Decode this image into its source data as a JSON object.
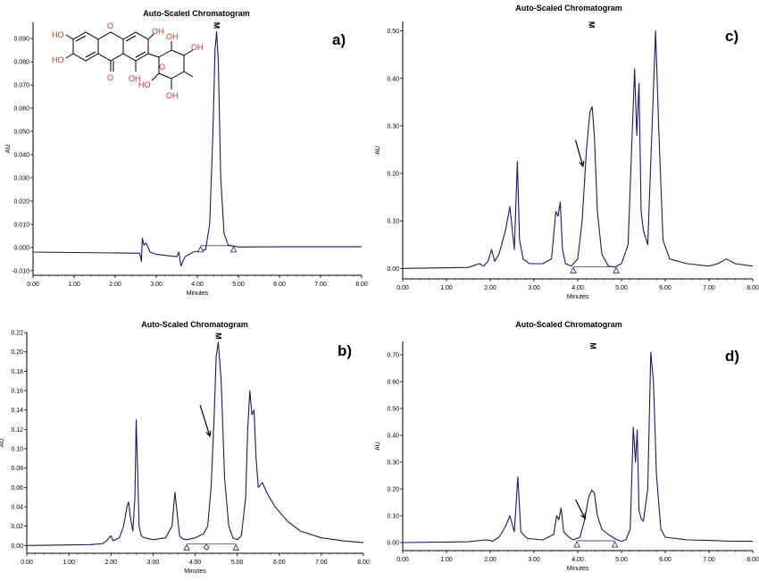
{
  "colors": {
    "trace": "#1a1a5e",
    "axis": "#000000",
    "marker": "#1a1a5e",
    "heteroatom": "#c0392b"
  },
  "molecule": {
    "labels": [
      "HO",
      "HO",
      "OH",
      "O",
      "O",
      "OH",
      "HO",
      "OH",
      "O",
      "OH",
      "OH"
    ]
  },
  "chart_data": [
    {
      "id": "a",
      "type": "line",
      "title": "Auto-Scaled Chromatogram",
      "panel_label": "a)",
      "xlabel": "Minutes",
      "ylabel": "AU",
      "xlim": [
        0,
        8
      ],
      "ylim": [
        -0.012,
        0.097
      ],
      "xticks": [
        "0.00",
        "1.00",
        "2.00",
        "3.00",
        "4.00",
        "5.00",
        "6.00",
        "7.00",
        "8.00"
      ],
      "yticks": [
        "-0.010",
        "0.000",
        "0.010",
        "0.020",
        "0.030",
        "0.040",
        "0.050",
        "0.060",
        "0.070",
        "0.080",
        "0.090"
      ],
      "ytick_values": [
        -0.01,
        0,
        0.01,
        0.02,
        0.03,
        0.04,
        0.05,
        0.06,
        0.07,
        0.08,
        0.09
      ],
      "peak_label": "M",
      "peak_label_x": 4.47,
      "arrow": false,
      "integration_marks": [
        {
          "x": 4.08,
          "shape": "triangle"
        },
        {
          "x": 4.88,
          "shape": "triangle"
        }
      ],
      "series": [
        {
          "x": [
            0,
            2.6,
            2.64,
            2.66,
            2.7,
            2.75,
            2.85,
            3.0,
            3.5,
            3.55,
            3.6,
            3.7,
            3.9,
            4.2,
            4.3,
            4.38,
            4.43,
            4.47,
            4.51,
            4.57,
            4.65,
            4.75,
            5.0,
            6.0,
            7.0,
            8.0
          ],
          "y": [
            -0.002,
            -0.0025,
            -0.006,
            0.004,
            0.001,
            0.002,
            -0.002,
            -0.003,
            -0.004,
            -0.002,
            -0.008,
            -0.004,
            -0.002,
            -0.001,
            0.01,
            0.05,
            0.085,
            0.093,
            0.08,
            0.03,
            0.006,
            0.001,
            0.0002,
            0.0003,
            0.0003,
            0.0003
          ]
        }
      ]
    },
    {
      "id": "b",
      "type": "line",
      "title": "Auto-Scaled Chromatogram",
      "panel_label": "b)",
      "xlabel": "Minutes",
      "ylabel": "AU",
      "xlim": [
        0,
        8
      ],
      "ylim": [
        -0.008,
        0.22
      ],
      "xticks": [
        "0.00",
        "1.00",
        "2.00",
        "3.00",
        "4.00",
        "5.00",
        "6.00",
        "7.00",
        "8.00"
      ],
      "yticks": [
        "0.00",
        "0.02",
        "0.04",
        "0.06",
        "0.08",
        "0.10",
        "0.12",
        "0.14",
        "0.16",
        "0.18",
        "0.20",
        "0.22"
      ],
      "ytick_values": [
        0,
        0.02,
        0.04,
        0.06,
        0.08,
        0.1,
        0.12,
        0.14,
        0.16,
        0.18,
        0.2,
        0.22
      ],
      "peak_label": "M",
      "peak_label_x": 4.55,
      "arrow": true,
      "arrow_from": [
        4.12,
        0.145
      ],
      "arrow_to": [
        4.35,
        0.113
      ],
      "integration_marks": [
        {
          "x": 3.8,
          "shape": "triangle"
        },
        {
          "x": 4.27,
          "shape": "diamond"
        },
        {
          "x": 4.97,
          "shape": "triangle"
        }
      ],
      "series": [
        {
          "x": [
            0,
            1.5,
            1.8,
            1.9,
            1.95,
            2.0,
            2.05,
            2.2,
            2.3,
            2.38,
            2.42,
            2.46,
            2.52,
            2.57,
            2.6,
            2.63,
            2.67,
            2.72,
            2.8,
            3.0,
            3.3,
            3.45,
            3.52,
            3.57,
            3.63,
            3.7,
            3.8,
            4.0,
            4.2,
            4.3,
            4.38,
            4.45,
            4.5,
            4.55,
            4.62,
            4.7,
            4.8,
            4.9,
            5.0,
            5.1,
            5.2,
            5.25,
            5.3,
            5.35,
            5.4,
            5.45,
            5.5,
            5.6,
            5.7,
            5.9,
            6.2,
            6.5,
            7.0,
            7.5,
            8.0
          ],
          "y": [
            0,
            0.001,
            0.002,
            0.005,
            0.008,
            0.01,
            0.005,
            0.008,
            0.02,
            0.04,
            0.045,
            0.03,
            0.015,
            0.05,
            0.13,
            0.085,
            0.02,
            0.01,
            0.008,
            0.006,
            0.008,
            0.02,
            0.055,
            0.035,
            0.01,
            0.007,
            0.006,
            0.008,
            0.012,
            0.02,
            0.06,
            0.13,
            0.195,
            0.21,
            0.17,
            0.07,
            0.02,
            0.008,
            0.006,
            0.01,
            0.05,
            0.12,
            0.16,
            0.135,
            0.14,
            0.09,
            0.06,
            0.065,
            0.055,
            0.04,
            0.025,
            0.015,
            0.008,
            0.005,
            0.003
          ]
        }
      ]
    },
    {
      "id": "c",
      "type": "line",
      "title": "Auto-Scaled Chromatogram",
      "panel_label": "c)",
      "xlabel": "Minutes",
      "ylabel": "AU",
      "xlim": [
        0,
        8
      ],
      "ylim": [
        -0.022,
        0.52
      ],
      "xticks": [
        "0.00",
        "1.00",
        "2.00",
        "3.00",
        "4.00",
        "5.00",
        "6.00",
        "7.00",
        "8.00"
      ],
      "yticks": [
        "0.00",
        "0.10",
        "0.20",
        "0.30",
        "0.40",
        "0.50"
      ],
      "ytick_values": [
        0,
        0.1,
        0.2,
        0.3,
        0.4,
        0.5
      ],
      "peak_label": "M",
      "peak_label_x": 4.32,
      "arrow": true,
      "arrow_from": [
        3.95,
        0.27
      ],
      "arrow_to": [
        4.12,
        0.215
      ],
      "integration_marks": [
        {
          "x": 3.9,
          "shape": "triangle"
        },
        {
          "x": 4.88,
          "shape": "triangle"
        }
      ],
      "series": [
        {
          "x": [
            0,
            1.5,
            1.75,
            1.85,
            1.95,
            2.03,
            2.1,
            2.2,
            2.35,
            2.45,
            2.55,
            2.62,
            2.67,
            2.75,
            2.9,
            3.2,
            3.4,
            3.5,
            3.55,
            3.6,
            3.65,
            3.72,
            3.85,
            4.0,
            4.1,
            4.2,
            4.28,
            4.33,
            4.38,
            4.45,
            4.55,
            4.7,
            4.85,
            5.0,
            5.15,
            5.25,
            5.3,
            5.35,
            5.4,
            5.45,
            5.5,
            5.6,
            5.7,
            5.78,
            5.85,
            5.95,
            6.1,
            6.5,
            7.0,
            7.2,
            7.4,
            7.6,
            8.0
          ],
          "y": [
            0,
            0.002,
            0.01,
            0.005,
            0.015,
            0.04,
            0.015,
            0.03,
            0.08,
            0.13,
            0.04,
            0.225,
            0.06,
            0.02,
            0.01,
            0.01,
            0.02,
            0.12,
            0.11,
            0.14,
            0.04,
            0.01,
            0.005,
            0.02,
            0.1,
            0.25,
            0.33,
            0.34,
            0.28,
            0.12,
            0.03,
            0.005,
            0.003,
            0.01,
            0.05,
            0.3,
            0.42,
            0.28,
            0.39,
            0.12,
            0.08,
            0.05,
            0.3,
            0.5,
            0.3,
            0.06,
            0.02,
            0.01,
            0.005,
            0.01,
            0.02,
            0.01,
            0.005
          ]
        }
      ]
    },
    {
      "id": "d",
      "type": "line",
      "title": "Auto-Scaled Chromatogram",
      "panel_label": "d)",
      "xlabel": "Minutes",
      "ylabel": "AU",
      "xlim": [
        0,
        8
      ],
      "ylim": [
        -0.03,
        0.75
      ],
      "xticks": [
        "0.00",
        "1.00",
        "2.00",
        "3.00",
        "4.00",
        "5.00",
        "6.00",
        "7.00",
        "8.00"
      ],
      "yticks": [
        "0.00",
        "0.10",
        "0.20",
        "0.30",
        "0.40",
        "0.50",
        "0.60",
        "0.70"
      ],
      "ytick_values": [
        0,
        0.1,
        0.2,
        0.3,
        0.4,
        0.5,
        0.6,
        0.7
      ],
      "peak_label": "M",
      "peak_label_x": 4.35,
      "arrow": true,
      "arrow_from": [
        3.95,
        0.16
      ],
      "arrow_to": [
        4.17,
        0.09
      ],
      "integration_marks": [
        {
          "x": 3.98,
          "shape": "triangle"
        },
        {
          "x": 4.85,
          "shape": "triangle"
        }
      ],
      "series": [
        {
          "x": [
            0,
            1.5,
            1.9,
            2.0,
            2.05,
            2.2,
            2.35,
            2.45,
            2.55,
            2.63,
            2.7,
            2.85,
            3.2,
            3.45,
            3.52,
            3.57,
            3.62,
            3.68,
            3.8,
            3.9,
            4.05,
            4.15,
            4.25,
            4.32,
            4.38,
            4.45,
            4.55,
            4.7,
            4.9,
            5.0,
            5.1,
            5.2,
            5.27,
            5.32,
            5.36,
            5.4,
            5.45,
            5.5,
            5.6,
            5.67,
            5.73,
            5.8,
            5.9,
            6.0,
            6.5,
            7.0,
            7.5,
            8.0
          ],
          "y": [
            0,
            0.003,
            0.01,
            0.008,
            0.005,
            0.02,
            0.06,
            0.1,
            0.04,
            0.245,
            0.04,
            0.015,
            0.01,
            0.03,
            0.1,
            0.085,
            0.13,
            0.04,
            0.02,
            0.01,
            0.02,
            0.08,
            0.17,
            0.195,
            0.185,
            0.1,
            0.05,
            0.03,
            0.01,
            0.005,
            0.01,
            0.05,
            0.43,
            0.3,
            0.42,
            0.12,
            0.09,
            0.08,
            0.2,
            0.71,
            0.6,
            0.25,
            0.05,
            0.02,
            0.01,
            0.008,
            0.005,
            0.005
          ]
        }
      ]
    }
  ]
}
